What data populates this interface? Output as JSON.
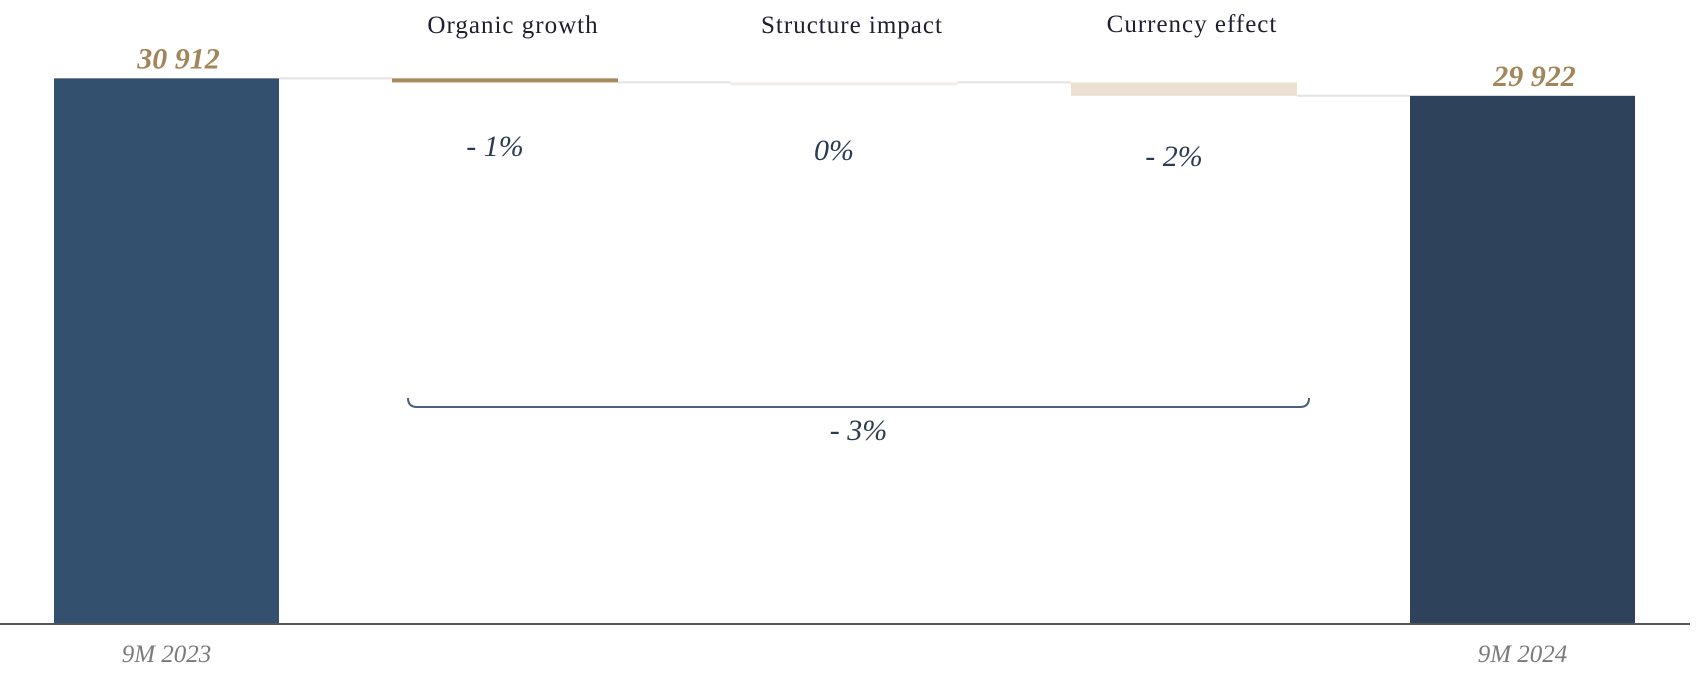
{
  "colors": {
    "start_bar": "#34506f",
    "end_bar": "#2e425c",
    "organic": "#a88a5e",
    "structure": "#f1ece4",
    "currency": "#ece1d1",
    "value_label": "#a2865a",
    "bracket": "#4a5f7c",
    "axis": "#555555",
    "connector": "#e4e4e4"
  },
  "chart_data": {
    "type": "waterfall",
    "ylim": [
      0,
      32800
    ],
    "categories": [
      "9M 2023",
      "Organic growth",
      "Structure impact",
      "Currency effect",
      "9M 2024"
    ],
    "totals": [
      {
        "category": "9M 2023",
        "value": 30912,
        "label": "30 912",
        "x_label": "9M 2023"
      },
      {
        "category": "9M 2024",
        "value": 29922,
        "label": "29 922",
        "x_label": "9M 2024"
      }
    ],
    "steps": [
      {
        "category": "Organic growth",
        "from": 30912,
        "to": 30680,
        "pct_label": "- 1%"
      },
      {
        "category": "Structure impact",
        "from": 30680,
        "to": 30680,
        "pct_label": "0%"
      },
      {
        "category": "Currency effect",
        "from": 30680,
        "to": 29922,
        "pct_label": "- 2%"
      }
    ],
    "bracket": {
      "from_category": "Organic growth",
      "to_category": "Currency effect",
      "label": "- 3%"
    }
  }
}
